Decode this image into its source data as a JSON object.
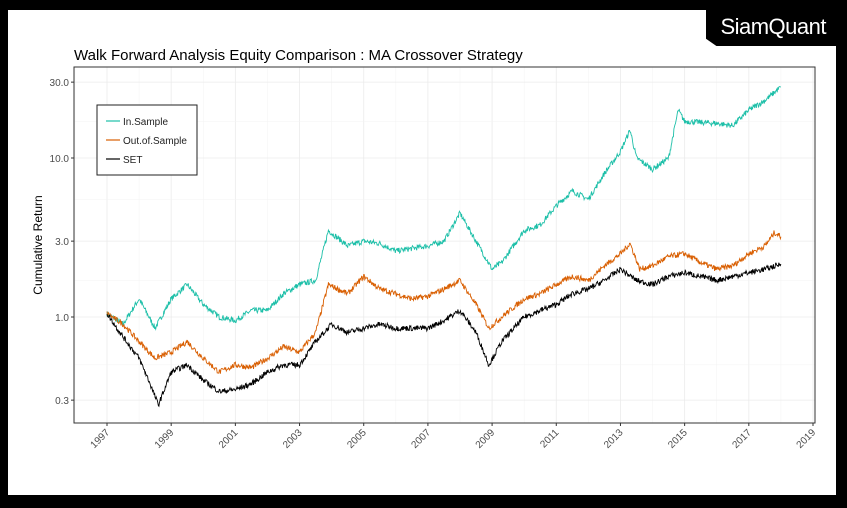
{
  "logo_text": "SiamQuant",
  "chart_data": {
    "type": "line",
    "title": "Walk Forward Analysis Equity Comparison : MA Crossover Strategy",
    "xlabel": "",
    "ylabel": "Cumulative Return",
    "y_scale": "log",
    "ylim": [
      0.22,
      38
    ],
    "xlim": [
      1996.1,
      2019.1
    ],
    "x_ticks": [
      "1997",
      "1999",
      "2001",
      "2003",
      "2005",
      "2007",
      "2009",
      "2011",
      "2013",
      "2015",
      "2017",
      "2019"
    ],
    "y_ticks": [
      {
        "value": 0.3,
        "label": "0.3"
      },
      {
        "value": 1,
        "label": "1.0"
      },
      {
        "value": 3,
        "label": "3.0"
      },
      {
        "value": 10,
        "label": "10.0"
      },
      {
        "value": 30,
        "label": "30.0"
      }
    ],
    "grid": true,
    "legend_position": "top-left",
    "series": [
      {
        "name": "In.Sample",
        "color": "#1cbfa8",
        "x": [
          1997,
          1997.5,
          1998,
          1998.5,
          1999,
          1999.5,
          2000,
          2000.5,
          2001,
          2001.5,
          2002,
          2002.5,
          2003,
          2003.5,
          2003.9,
          2004.5,
          2005,
          2005.5,
          2006,
          2007,
          2007.5,
          2008,
          2008.5,
          2009,
          2009.3,
          2010,
          2010.5,
          2011,
          2011.5,
          2012,
          2012.5,
          2013,
          2013.3,
          2013.5,
          2014,
          2014.5,
          2014.8,
          2015,
          2016,
          2016.5,
          2017,
          2017.5,
          2018
        ],
        "y": [
          1.05,
          0.9,
          1.3,
          0.85,
          1.3,
          1.6,
          1.2,
          1.0,
          0.95,
          1.1,
          1.1,
          1.4,
          1.6,
          1.7,
          3.5,
          2.8,
          3.0,
          2.9,
          2.6,
          2.8,
          3.0,
          4.5,
          3.0,
          2.0,
          2.2,
          3.5,
          3.8,
          5.0,
          6.2,
          5.5,
          8,
          11,
          15,
          10,
          8.5,
          10,
          20,
          17,
          16.5,
          16,
          20,
          23,
          28
        ]
      },
      {
        "name": "Out.of.Sample",
        "color": "#d95f02",
        "x": [
          1997,
          1997.5,
          1998,
          1998.5,
          1999,
          1999.5,
          2000,
          2000.5,
          2001,
          2001.5,
          2002,
          2002.5,
          2003,
          2003.5,
          2003.9,
          2004.5,
          2005,
          2005.5,
          2006,
          2006.5,
          2007,
          2007.5,
          2008,
          2008.5,
          2008.9,
          2009.3,
          2010,
          2010.5,
          2011,
          2011.5,
          2012,
          2012.5,
          2013,
          2013.3,
          2013.6,
          2014,
          2014.5,
          2015,
          2015.5,
          2016,
          2016.5,
          2017,
          2017.5,
          2017.8,
          2018
        ],
        "y": [
          1.05,
          0.9,
          0.7,
          0.55,
          0.6,
          0.7,
          0.55,
          0.45,
          0.5,
          0.48,
          0.55,
          0.65,
          0.6,
          0.8,
          1.6,
          1.4,
          1.8,
          1.5,
          1.4,
          1.3,
          1.35,
          1.5,
          1.7,
          1.2,
          0.85,
          1.0,
          1.3,
          1.4,
          1.6,
          1.8,
          1.7,
          2.1,
          2.5,
          2.9,
          2.0,
          2.1,
          2.4,
          2.5,
          2.2,
          2.0,
          2.1,
          2.5,
          2.8,
          3.4,
          3.2
        ]
      },
      {
        "name": "SET",
        "color": "#000000",
        "x": [
          1997,
          1997.5,
          1998,
          1998.3,
          1998.6,
          1999,
          1999.5,
          2000,
          2000.5,
          2001,
          2001.5,
          2002,
          2002.5,
          2003,
          2003.5,
          2004,
          2004.5,
          2005,
          2005.5,
          2006,
          2007,
          2007.5,
          2008,
          2008.5,
          2008.9,
          2009.3,
          2010,
          2010.5,
          2011,
          2011.5,
          2012,
          2012.5,
          2013,
          2013.5,
          2014,
          2014.5,
          2015,
          2016,
          2016.5,
          2017,
          2017.5,
          2018
        ],
        "y": [
          1.05,
          0.75,
          0.55,
          0.4,
          0.28,
          0.45,
          0.5,
          0.4,
          0.34,
          0.35,
          0.38,
          0.45,
          0.5,
          0.5,
          0.7,
          0.9,
          0.8,
          0.85,
          0.9,
          0.85,
          0.85,
          0.95,
          1.1,
          0.8,
          0.5,
          0.7,
          1.0,
          1.1,
          1.2,
          1.4,
          1.5,
          1.7,
          2.0,
          1.7,
          1.6,
          1.8,
          1.9,
          1.7,
          1.8,
          1.9,
          2.0,
          2.15
        ]
      }
    ]
  }
}
